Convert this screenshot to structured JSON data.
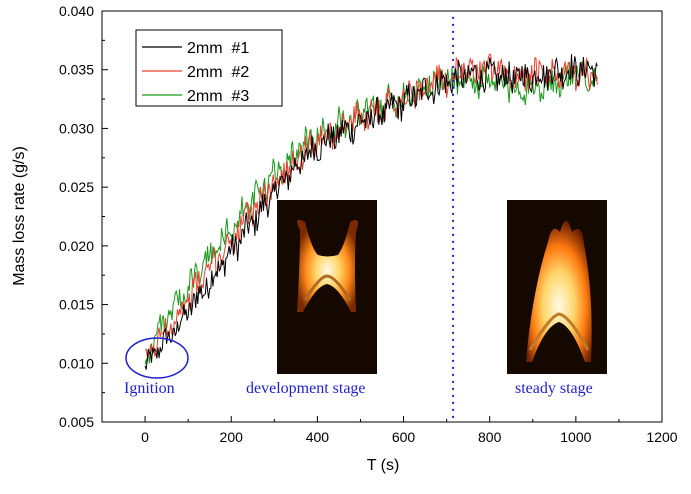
{
  "chart_data": {
    "type": "line",
    "title": "",
    "xlabel": "T (s)",
    "ylabel": "Mass loss rate (g/s)",
    "xlim": [
      -100,
      1200
    ],
    "ylim": [
      0.005,
      0.04
    ],
    "xticks": [
      0,
      200,
      400,
      600,
      800,
      1000,
      1200
    ],
    "yticks": [
      0.005,
      0.01,
      0.015,
      0.02,
      0.025,
      0.03,
      0.035,
      0.04
    ],
    "ytick_labels": [
      "0.005",
      "0.010",
      "0.015",
      "0.020",
      "0.025",
      "0.030",
      "0.035",
      "0.040"
    ],
    "grid": false,
    "legend_position": "top-left",
    "series": [
      {
        "name": "2mm  #1",
        "color": "#000000",
        "x": [
          0,
          25,
          50,
          75,
          100,
          150,
          200,
          250,
          300,
          350,
          400,
          450,
          500,
          550,
          600,
          650,
          700,
          750,
          800,
          850,
          900,
          950,
          1000,
          1050
        ],
        "y": [
          0.0095,
          0.011,
          0.012,
          0.013,
          0.0145,
          0.017,
          0.0195,
          0.022,
          0.0245,
          0.0268,
          0.0285,
          0.0295,
          0.0305,
          0.0313,
          0.0322,
          0.0332,
          0.034,
          0.0345,
          0.0345,
          0.0343,
          0.0345,
          0.0348,
          0.035,
          0.035
        ]
      },
      {
        "name": "2mm  #2",
        "color": "#e8412f",
        "x": [
          0,
          25,
          50,
          75,
          100,
          150,
          200,
          250,
          300,
          350,
          400,
          450,
          500,
          550,
          600,
          650,
          700,
          750,
          800,
          850,
          900,
          950,
          1000,
          1050
        ],
        "y": [
          0.01,
          0.0118,
          0.013,
          0.014,
          0.0155,
          0.018,
          0.0205,
          0.023,
          0.0253,
          0.0275,
          0.029,
          0.03,
          0.031,
          0.0318,
          0.0327,
          0.0335,
          0.0342,
          0.035,
          0.035,
          0.0345,
          0.0345,
          0.0345,
          0.0345,
          0.0345
        ]
      },
      {
        "name": "2mm  #3",
        "color": "#1a9a1a",
        "x": [
          0,
          25,
          50,
          75,
          100,
          150,
          200,
          250,
          300,
          350,
          400,
          450,
          500,
          550,
          600,
          650,
          700,
          750,
          800,
          850,
          900,
          950,
          1000,
          1050
        ],
        "y": [
          0.01,
          0.0125,
          0.0138,
          0.015,
          0.0165,
          0.019,
          0.0215,
          0.0238,
          0.026,
          0.028,
          0.0293,
          0.0303,
          0.0312,
          0.032,
          0.0328,
          0.0336,
          0.0342,
          0.034,
          0.0338,
          0.0335,
          0.0335,
          0.034,
          0.0345,
          0.0345
        ]
      }
    ],
    "stage_divider_x": 715,
    "annotations": {
      "ignition": "Ignition",
      "development": "development stage",
      "steady": "steady stage"
    },
    "annotation_color": "#1f1fd0"
  }
}
